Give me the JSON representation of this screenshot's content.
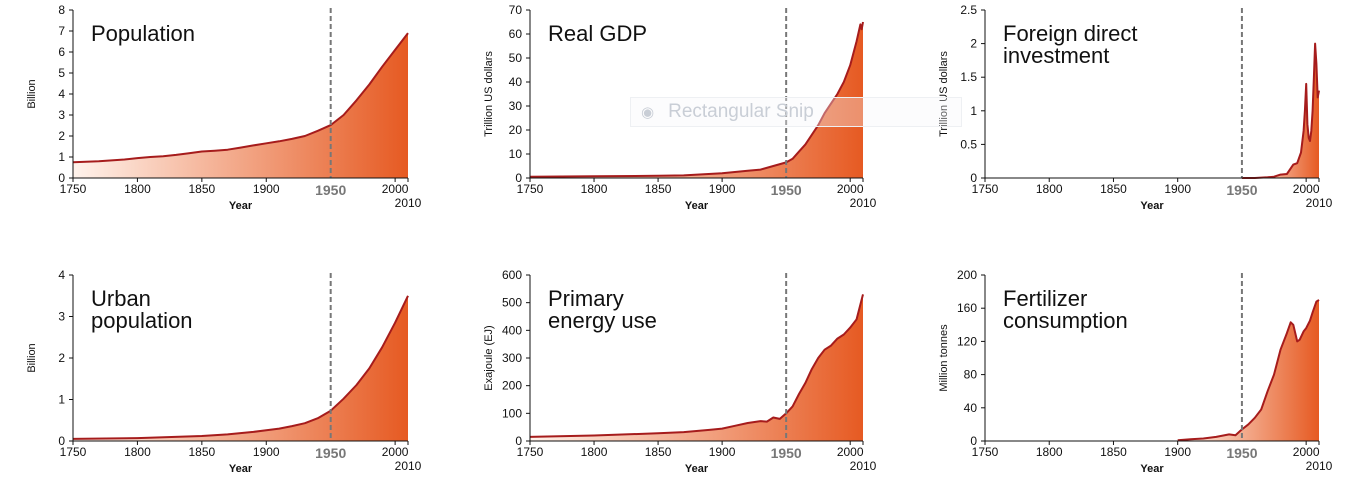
{
  "accent": "#a61c1c",
  "fill_light": "#fff3ec",
  "fill_dark": "#e65a22",
  "marker_year": "1950",
  "end_year_label": "2010",
  "watermark": {
    "text": "Rectangular Snip",
    "icon": "snip-icon"
  },
  "chart_data": [
    {
      "type": "area",
      "title_lines": [
        "Population"
      ],
      "ylabel": "Billion",
      "xlabel": "Year",
      "xlim": [
        1750,
        2010
      ],
      "ylim": [
        0,
        8
      ],
      "yticks": [
        "0",
        "1",
        "2",
        "3",
        "4",
        "5",
        "6",
        "7",
        "8"
      ],
      "xticks": [
        "1750",
        "1800",
        "1850",
        "1900",
        "2000"
      ],
      "x": [
        1750,
        1770,
        1790,
        1800,
        1810,
        1820,
        1830,
        1840,
        1850,
        1860,
        1870,
        1880,
        1890,
        1900,
        1910,
        1920,
        1930,
        1940,
        1950,
        1960,
        1970,
        1980,
        1990,
        2000,
        2010
      ],
      "values": [
        0.75,
        0.8,
        0.88,
        0.95,
        1.0,
        1.04,
        1.1,
        1.18,
        1.26,
        1.3,
        1.35,
        1.45,
        1.55,
        1.65,
        1.75,
        1.86,
        2.0,
        2.25,
        2.52,
        3.0,
        3.7,
        4.45,
        5.3,
        6.1,
        6.9
      ]
    },
    {
      "type": "area",
      "title_lines": [
        "Real GDP"
      ],
      "ylabel": "Trillion US dollars",
      "xlabel": "Year",
      "xlim": [
        1750,
        2010
      ],
      "ylim": [
        0,
        70
      ],
      "yticks": [
        "0",
        "10",
        "20",
        "30",
        "40",
        "50",
        "60",
        "70"
      ],
      "xticks": [
        "1750",
        "1800",
        "1850",
        "1900",
        "2000"
      ],
      "x": [
        1750,
        1800,
        1850,
        1870,
        1900,
        1910,
        1920,
        1930,
        1940,
        1950,
        1955,
        1960,
        1965,
        1970,
        1975,
        1980,
        1985,
        1990,
        1995,
        2000,
        2005,
        2008,
        2009,
        2010
      ],
      "values": [
        0.5,
        0.7,
        0.9,
        1.1,
        2.0,
        2.5,
        3.0,
        3.5,
        5.0,
        6.5,
        8.0,
        11.0,
        14.0,
        18.0,
        22.0,
        27.0,
        31.0,
        35.0,
        40.0,
        47.0,
        57.0,
        64.0,
        62.0,
        65.0
      ]
    },
    {
      "type": "area",
      "title_lines": [
        "Foreign direct",
        "investment"
      ],
      "ylabel": "Trillion US dollars",
      "xlabel": "Year",
      "xlim": [
        1750,
        2010
      ],
      "ylim": [
        0,
        2.5
      ],
      "yticks": [
        "0",
        "0.5",
        "1",
        "1.5",
        "2",
        "2.5"
      ],
      "xticks": [
        "1750",
        "1800",
        "1850",
        "1900",
        "2000"
      ],
      "x": [
        1950,
        1960,
        1970,
        1975,
        1980,
        1985,
        1990,
        1993,
        1996,
        1998,
        1999,
        2000,
        2001,
        2002,
        2003,
        2004,
        2005,
        2006,
        2007,
        2008,
        2009,
        2010
      ],
      "values": [
        0,
        0,
        0.01,
        0.02,
        0.05,
        0.06,
        0.2,
        0.22,
        0.38,
        0.7,
        1.0,
        1.4,
        0.8,
        0.6,
        0.55,
        0.7,
        1.0,
        1.5,
        2.0,
        1.7,
        1.2,
        1.3
      ]
    },
    {
      "type": "area",
      "title_lines": [
        "Urban",
        "population"
      ],
      "ylabel": "Billion",
      "xlabel": "Year",
      "xlim": [
        1750,
        2010
      ],
      "ylim": [
        0,
        4
      ],
      "yticks": [
        "0",
        "1",
        "2",
        "3",
        "4"
      ],
      "xticks": [
        "1750",
        "1800",
        "1850",
        "1900",
        "2000"
      ],
      "x": [
        1750,
        1800,
        1850,
        1870,
        1890,
        1900,
        1910,
        1920,
        1930,
        1940,
        1950,
        1960,
        1970,
        1980,
        1990,
        2000,
        2010
      ],
      "values": [
        0.05,
        0.07,
        0.12,
        0.16,
        0.22,
        0.26,
        0.3,
        0.36,
        0.43,
        0.55,
        0.73,
        1.02,
        1.35,
        1.75,
        2.26,
        2.85,
        3.5
      ]
    },
    {
      "type": "area",
      "title_lines": [
        "Primary",
        "energy use"
      ],
      "ylabel": "Exajoule (EJ)",
      "xlabel": "Year",
      "xlim": [
        1750,
        2010
      ],
      "ylim": [
        0,
        600
      ],
      "yticks": [
        "0",
        "100",
        "200",
        "300",
        "400",
        "500",
        "600"
      ],
      "xticks": [
        "1750",
        "1800",
        "1850",
        "1900",
        "2000"
      ],
      "x": [
        1750,
        1800,
        1850,
        1870,
        1890,
        1900,
        1910,
        1920,
        1930,
        1935,
        1940,
        1945,
        1950,
        1955,
        1960,
        1965,
        1970,
        1975,
        1980,
        1985,
        1990,
        1995,
        2000,
        2005,
        2010
      ],
      "values": [
        15,
        20,
        28,
        32,
        40,
        45,
        55,
        65,
        72,
        70,
        85,
        80,
        100,
        125,
        170,
        210,
        260,
        300,
        330,
        345,
        370,
        385,
        410,
        440,
        530
      ]
    },
    {
      "type": "area",
      "title_lines": [
        "Fertilizer",
        "consumption"
      ],
      "ylabel": "Million tonnes",
      "xlabel": "Year",
      "xlim": [
        1750,
        2010
      ],
      "ylim": [
        0,
        200
      ],
      "yticks": [
        "0",
        "40",
        "80",
        "120",
        "160",
        "200"
      ],
      "xticks": [
        "1750",
        "1800",
        "1850",
        "1900",
        "2000"
      ],
      "x": [
        1900,
        1910,
        1920,
        1930,
        1940,
        1945,
        1950,
        1955,
        1960,
        1965,
        1970,
        1975,
        1980,
        1985,
        1988,
        1990,
        1993,
        1995,
        1998,
        2000,
        2003,
        2005,
        2008,
        2010
      ],
      "values": [
        1,
        2,
        3,
        5,
        8,
        7,
        14,
        20,
        28,
        38,
        60,
        80,
        110,
        130,
        143,
        140,
        120,
        122,
        132,
        136,
        145,
        155,
        168,
        170
      ]
    }
  ]
}
